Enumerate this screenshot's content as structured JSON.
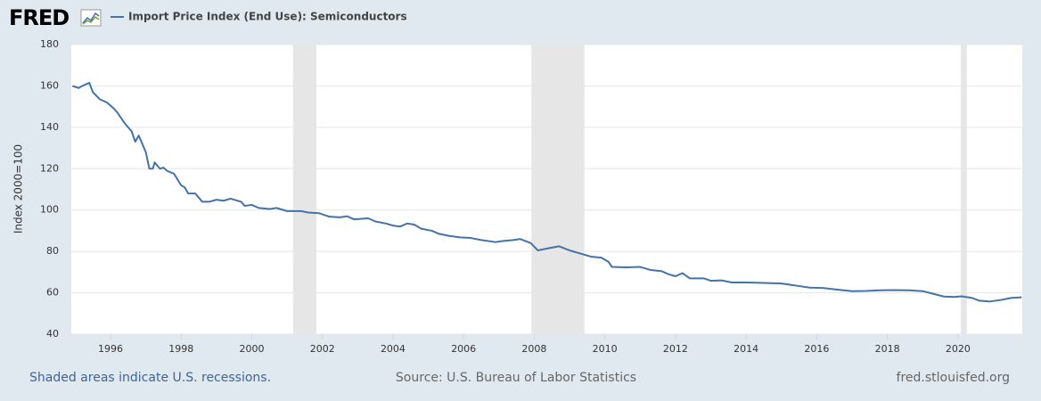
{
  "logo": "FRED",
  "footer": {
    "left": "Shaded areas indicate U.S. recessions.",
    "center": "Source: U.S. Bureau of Labor Statistics",
    "right": "fred.stlouisfed.org"
  },
  "chart_data": {
    "type": "line",
    "ylabel": "Index 2000=100",
    "xlim": [
      1994.89,
      2021.82
    ],
    "ylim": [
      40,
      180
    ],
    "xticks": [
      1996,
      1998,
      2000,
      2002,
      2004,
      2006,
      2008,
      2010,
      2012,
      2014,
      2016,
      2018,
      2020
    ],
    "yticks": [
      40,
      60,
      80,
      100,
      120,
      140,
      160,
      180
    ],
    "grid": true,
    "recessions": [
      [
        2001.17,
        2001.83
      ],
      [
        2007.92,
        2009.42
      ],
      [
        2020.08,
        2020.25
      ]
    ],
    "recession_color": "#e6e6e6",
    "x": [
      1994.92,
      1995.1,
      1995.2,
      1995.4,
      1995.5,
      1995.7,
      1995.9,
      1996.1,
      1996.2,
      1996.4,
      1996.6,
      1996.7,
      1996.8,
      1997.0,
      1997.1,
      1997.2,
      1997.25,
      1997.4,
      1997.5,
      1997.6,
      1997.8,
      1998.0,
      1998.1,
      1998.2,
      1998.4,
      1998.6,
      1998.8,
      1999.0,
      1999.2,
      1999.4,
      1999.7,
      1999.8,
      2000.0,
      2000.2,
      2000.5,
      2000.7,
      2001.0,
      2001.4,
      2001.6,
      2001.9,
      2002.2,
      2002.5,
      2002.7,
      2002.9,
      2003.3,
      2003.5,
      2003.8,
      2004.0,
      2004.2,
      2004.4,
      2004.6,
      2004.8,
      2005.1,
      2005.3,
      2005.6,
      2005.9,
      2006.2,
      2006.5,
      2006.9,
      2007.1,
      2007.4,
      2007.6,
      2007.9,
      2008.1,
      2008.4,
      2008.7,
      2009.0,
      2009.3,
      2009.6,
      2009.9,
      2010.1,
      2010.2,
      2010.6,
      2011.0,
      2011.3,
      2011.6,
      2011.8,
      2012.0,
      2012.2,
      2012.4,
      2012.8,
      2013.0,
      2013.3,
      2013.6,
      2014.0,
      2014.4,
      2015.0,
      2015.4,
      2015.8,
      2016.2,
      2016.6,
      2017.0,
      2017.4,
      2017.8,
      2018.2,
      2018.6,
      2019.0,
      2019.3,
      2019.6,
      2019.9,
      2020.1,
      2020.4,
      2020.6,
      2020.9,
      2021.2,
      2021.5,
      2021.8
    ],
    "series": [
      {
        "name": "Import Price Index (End Use): Semiconductors",
        "color": "#4572a7",
        "values": [
          160,
          159,
          160,
          161.5,
          157,
          153.5,
          152,
          149,
          147,
          142,
          138,
          133,
          136,
          128,
          120,
          120,
          123,
          120,
          120.5,
          119,
          117.5,
          112,
          111,
          108,
          108,
          104,
          104,
          105,
          104.5,
          105.5,
          104,
          102,
          102.5,
          101,
          100.5,
          101,
          99.5,
          99.5,
          98.8,
          98.5,
          96.8,
          96.5,
          97,
          95.5,
          96,
          94.5,
          93.5,
          92.5,
          92,
          93.5,
          93,
          91,
          90,
          88.5,
          87.5,
          86.8,
          86.5,
          85.5,
          84.5,
          85,
          85.5,
          86,
          84,
          80.5,
          81.5,
          82.5,
          80.5,
          79,
          77.5,
          77,
          75,
          72.5,
          72.3,
          72.5,
          71,
          70.5,
          69,
          68,
          69.5,
          67,
          67,
          65.8,
          66,
          65,
          65,
          64.8,
          64.5,
          63.5,
          62.5,
          62.3,
          61.5,
          60.8,
          60.9,
          61.2,
          61.3,
          61.2,
          60.8,
          59.5,
          58.2,
          58,
          58.3,
          57.5,
          56.2,
          55.8,
          56.5,
          57.5,
          57.8
        ]
      }
    ]
  }
}
